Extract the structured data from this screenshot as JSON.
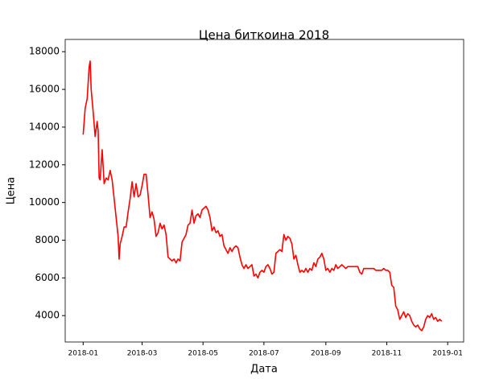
{
  "chart_data": {
    "type": "line",
    "title": "Цена биткоина 2018",
    "x_label": "Дата",
    "y_label": "Цена",
    "x": [
      0,
      2,
      4,
      6,
      7,
      8,
      10,
      12,
      14,
      15,
      16,
      17,
      19,
      21,
      23,
      25,
      27,
      29,
      31,
      33,
      35,
      36,
      37,
      39,
      41,
      43,
      45,
      47,
      49,
      51,
      53,
      55,
      57,
      59,
      61,
      63,
      65,
      67,
      69,
      71,
      73,
      75,
      77,
      79,
      81,
      83,
      85,
      87,
      89,
      91,
      93,
      95,
      97,
      99,
      101,
      103,
      105,
      107,
      109,
      111,
      113,
      115,
      117,
      119,
      121,
      123,
      125,
      127,
      129,
      131,
      133,
      135,
      137,
      139,
      141,
      143,
      145,
      147,
      149,
      151,
      153,
      155,
      157,
      159,
      161,
      163,
      165,
      167,
      169,
      171,
      173,
      175,
      177,
      179,
      181,
      183,
      185,
      187,
      189,
      191,
      193,
      195,
      197,
      199,
      201,
      203,
      205,
      207,
      209,
      211,
      213,
      215,
      217,
      219,
      221,
      223,
      225,
      227,
      229,
      231,
      233,
      235,
      237,
      239,
      241,
      243,
      245,
      247,
      249,
      251,
      253,
      255,
      257,
      259,
      261,
      263,
      265,
      267,
      269,
      271,
      273,
      275,
      277,
      279,
      281,
      283,
      285,
      287,
      289,
      291,
      293,
      295,
      297,
      299,
      301,
      303,
      305,
      307,
      309,
      311,
      313,
      315,
      317,
      319,
      321,
      323,
      325,
      327,
      329,
      331,
      333,
      335,
      337,
      339,
      341,
      343,
      345,
      347,
      349,
      351,
      353,
      355,
      357,
      359
    ],
    "series": [
      {
        "name": "Цена",
        "color": "#ff0000",
        "values": [
          13600,
          15000,
          15500,
          17200,
          17500,
          16000,
          14800,
          13500,
          14300,
          13800,
          11300,
          11200,
          12800,
          11000,
          11300,
          11200,
          11700,
          11200,
          10200,
          9200,
          8200,
          7000,
          7800,
          8200,
          8700,
          8700,
          9500,
          10200,
          11100,
          10300,
          11000,
          10300,
          10400,
          10900,
          11500,
          11500,
          10400,
          9200,
          9500,
          9100,
          8200,
          8400,
          8900,
          8600,
          8800,
          8300,
          7100,
          7000,
          6900,
          7000,
          6800,
          7000,
          6900,
          7900,
          8100,
          8300,
          8800,
          8900,
          9600,
          8900,
          9300,
          9400,
          9200,
          9600,
          9700,
          9800,
          9600,
          9200,
          8500,
          8700,
          8400,
          8500,
          8200,
          8300,
          7700,
          7500,
          7300,
          7600,
          7400,
          7600,
          7700,
          7600,
          7100,
          6700,
          6500,
          6700,
          6500,
          6600,
          6700,
          6100,
          6200,
          6000,
          6300,
          6400,
          6300,
          6600,
          6700,
          6500,
          6200,
          6300,
          7300,
          7400,
          7500,
          7400,
          8300,
          8000,
          8200,
          8100,
          7800,
          7000,
          7200,
          6700,
          6300,
          6400,
          6300,
          6500,
          6300,
          6500,
          6400,
          6800,
          6600,
          7000,
          7100,
          7300,
          7000,
          6400,
          6500,
          6300,
          6500,
          6400,
          6700,
          6500,
          6600,
          6700,
          6600,
          6500,
          6600,
          6600,
          6600,
          6600,
          6600,
          6600,
          6300,
          6200,
          6500,
          6500,
          6500,
          6500,
          6500,
          6500,
          6400,
          6400,
          6400,
          6400,
          6500,
          6400,
          6400,
          6300,
          5600,
          5500,
          4500,
          4300,
          3800,
          4000,
          4200,
          3900,
          4100,
          4000,
          3700,
          3500,
          3400,
          3500,
          3300,
          3200,
          3400,
          3800,
          4000,
          3900,
          4100,
          3800,
          3900,
          3700,
          3800,
          3700
        ]
      }
    ],
    "xlim": [
      -18,
      381
    ],
    "xticks": [
      {
        "value": 0,
        "label": "2018-01"
      },
      {
        "value": 59,
        "label": "2018-03"
      },
      {
        "value": 120,
        "label": "2018-05"
      },
      {
        "value": 181,
        "label": "2018-07"
      },
      {
        "value": 243,
        "label": "2018-09"
      },
      {
        "value": 304,
        "label": "2018-11"
      },
      {
        "value": 365,
        "label": "2019-01"
      }
    ],
    "ylim": [
      2600,
      18650
    ],
    "yticks": [
      4000,
      6000,
      8000,
      10000,
      12000,
      14000,
      16000,
      18000
    ]
  }
}
